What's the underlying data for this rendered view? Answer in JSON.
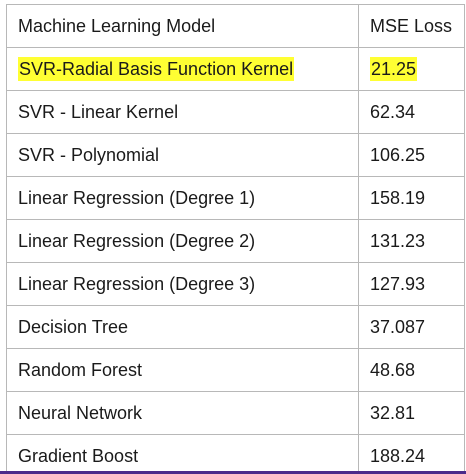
{
  "table": {
    "headers": [
      "Machine Learning Model",
      "MSE Loss"
    ],
    "rows": [
      {
        "model": "SVR-Radial Basis Function Kernel",
        "mse": "21.25",
        "highlighted": true
      },
      {
        "model": "SVR - Linear Kernel",
        "mse": "62.34",
        "highlighted": false
      },
      {
        "model": "SVR - Polynomial",
        "mse": "106.25",
        "highlighted": false
      },
      {
        "model": "Linear Regression (Degree 1)",
        "mse": "158.19",
        "highlighted": false
      },
      {
        "model": "Linear Regression (Degree 2)",
        "mse": "131.23",
        "highlighted": false
      },
      {
        "model": "Linear Regression (Degree 3)",
        "mse": "127.93",
        "highlighted": false
      },
      {
        "model": "Decision Tree",
        "mse": "37.087",
        "highlighted": false
      },
      {
        "model": "Random Forest",
        "mse": "48.68",
        "highlighted": false
      },
      {
        "model": "Neural Network",
        "mse": "32.81",
        "highlighted": false
      },
      {
        "model": "Gradient Boost",
        "mse": "188.24",
        "highlighted": false
      }
    ]
  },
  "colors": {
    "highlight": "#ffff33",
    "border": "#b8b8b8",
    "bottom_line": "#4b2a8a"
  }
}
